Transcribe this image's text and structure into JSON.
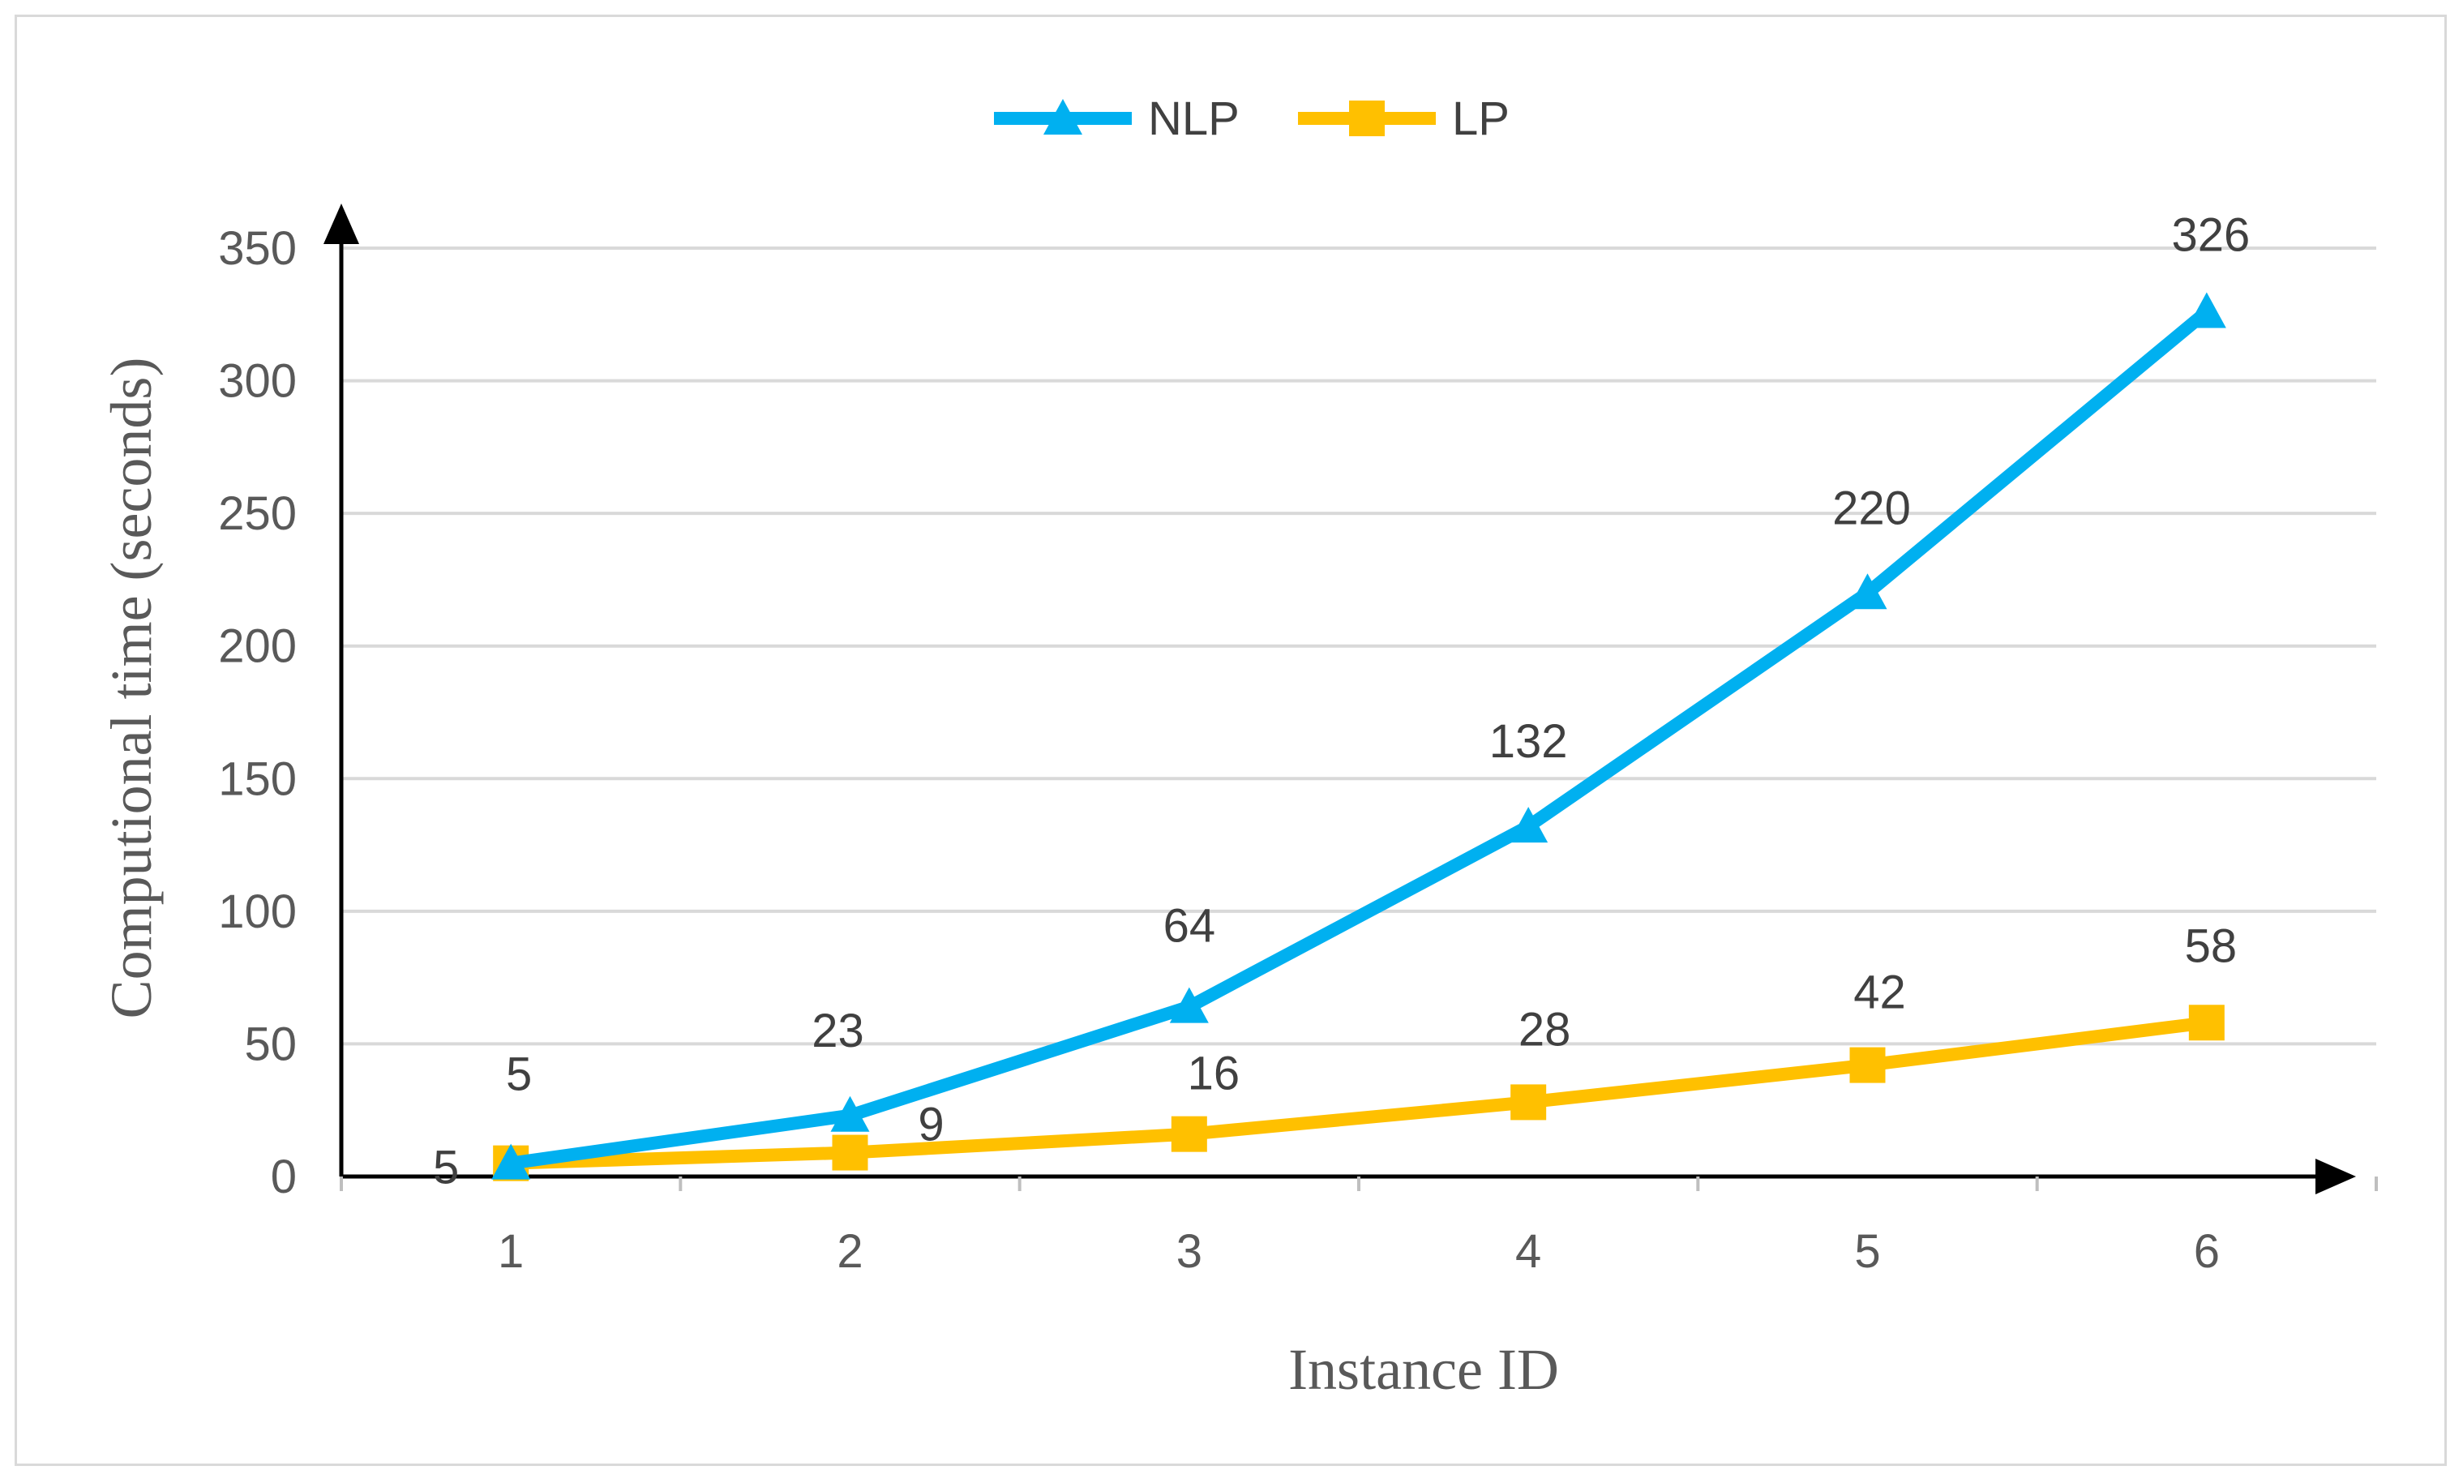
{
  "chart_data": {
    "type": "line",
    "categories": [
      "1",
      "2",
      "3",
      "4",
      "5",
      "6"
    ],
    "series": [
      {
        "name": "NLP",
        "color": "#00b0f0",
        "marker": "triangle",
        "values": [
          5,
          23,
          64,
          132,
          220,
          326
        ]
      },
      {
        "name": "LP",
        "color": "#ffc000",
        "marker": "square",
        "values": [
          5,
          9,
          16,
          28,
          42,
          58
        ]
      }
    ],
    "xlabel": "Instance ID",
    "ylabel": "Computional time (seconds)",
    "ylim": [
      0,
      350
    ],
    "yticks": [
      0,
      50,
      100,
      150,
      200,
      250,
      300,
      350
    ],
    "grid": true,
    "legend_position": "top"
  }
}
